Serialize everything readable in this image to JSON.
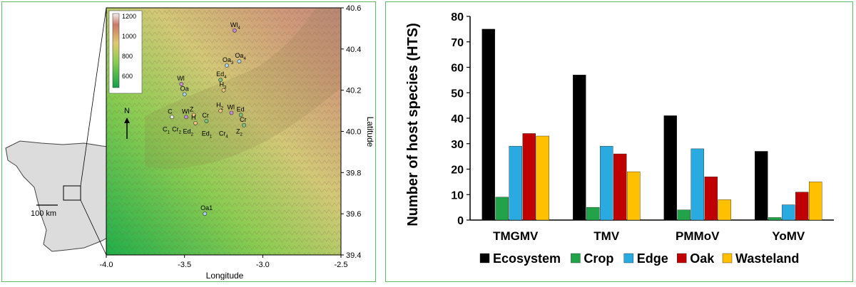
{
  "map": {
    "colorbar": {
      "ticks": [
        "1200",
        "1000",
        "800",
        "600"
      ]
    },
    "lat_ticks": [
      "40.6",
      "40.4",
      "40.2",
      "40.0",
      "39.8",
      "39.6",
      "39.4"
    ],
    "lon_ticks": [
      "-4.0",
      "-3.5",
      "-3.0",
      "-2.5"
    ],
    "lat_label": "Latitude",
    "lon_label": "Longitude",
    "north": "N",
    "scale_label": "100 km",
    "sites": [
      {
        "base": "Wl",
        "sub": "4",
        "color": "#c58ad6",
        "lon": -3.18,
        "lat": 40.49
      },
      {
        "base": "Oa",
        "sub": "3",
        "color": "#a9d3e8",
        "lon": -3.23,
        "lat": 40.32
      },
      {
        "base": "Oa",
        "sub": "4",
        "color": "#a9d3e8",
        "lon": -3.15,
        "lat": 40.34
      },
      {
        "base": "Ed",
        "sub": "4",
        "color": "#7dc37f",
        "lon": -3.27,
        "lat": 40.25
      },
      {
        "base": "H",
        "sub": "3",
        "color": "#f1c27d",
        "lon": -3.25,
        "lat": 40.2
      },
      {
        "base": "Wl",
        "sub": "",
        "color": "#c58ad6",
        "lon": -3.52,
        "lat": 40.23
      },
      {
        "base": "Oa",
        "sub": "",
        "color": "#a9d3e8",
        "lon": -3.5,
        "lat": 40.18
      },
      {
        "base": "C",
        "sub": "",
        "color": "#e8e8e8",
        "lon": -3.58,
        "lat": 40.07
      },
      {
        "base": "Wl",
        "sub": "",
        "color": "#c58ad6",
        "lon": -3.49,
        "lat": 40.07
      },
      {
        "base": "Z",
        "sub": "",
        "color": "#f1c27d",
        "lon": -3.44,
        "lat": 40.08
      },
      {
        "base": "H",
        "sub": "",
        "color": "#f1c27d",
        "lon": -3.43,
        "lat": 40.04
      },
      {
        "base": "Cr",
        "sub": "",
        "color": "#7dc37f",
        "lon": -3.36,
        "lat": 40.05
      },
      {
        "base": "H",
        "sub": "2",
        "color": "#f1c27d",
        "lon": -3.27,
        "lat": 40.1
      },
      {
        "base": "Wl",
        "sub": "",
        "color": "#c58ad6",
        "lon": -3.2,
        "lat": 40.09
      },
      {
        "base": "Ed",
        "sub": "",
        "color": "#7dc37f",
        "lon": -3.14,
        "lat": 40.08
      },
      {
        "base": "Cr",
        "sub": "",
        "color": "#7dc37f",
        "lon": -3.12,
        "lat": 40.03
      },
      {
        "base": "Oa1",
        "sub": "",
        "color": "#a9d3e8",
        "lon": -3.37,
        "lat": 39.6
      }
    ],
    "extra_labels": [
      {
        "base": "C",
        "sub": "1",
        "lon": -3.64,
        "lat": 40.0
      },
      {
        "base": "Cr",
        "sub": "2",
        "lon": -3.58,
        "lat": 40.0
      },
      {
        "base": "Ed",
        "sub": "2",
        "lon": -3.51,
        "lat": 39.99
      },
      {
        "base": "Ed",
        "sub": "1",
        "lon": -3.39,
        "lat": 39.98
      },
      {
        "base": "Cr",
        "sub": "4",
        "lon": -3.28,
        "lat": 39.98
      },
      {
        "base": "Z",
        "sub": "2",
        "lon": -3.17,
        "lat": 39.99
      }
    ]
  },
  "chart_data": {
    "type": "bar",
    "categories": [
      "TMGMV",
      "TMV",
      "PMMoV",
      "YoMV"
    ],
    "series": [
      {
        "name": "Ecosystem",
        "color": "#000000",
        "values": [
          75,
          57,
          41,
          27
        ]
      },
      {
        "name": "Crop",
        "color": "#22a34a",
        "values": [
          9,
          5,
          4,
          1
        ]
      },
      {
        "name": "Edge",
        "color": "#29abe2",
        "values": [
          29,
          29,
          28,
          6
        ]
      },
      {
        "name": "Oak",
        "color": "#c00000",
        "values": [
          34,
          26,
          17,
          11
        ]
      },
      {
        "name": "Wasteland",
        "color": "#ffc000",
        "values": [
          33,
          19,
          8,
          15
        ]
      }
    ],
    "ylabel": "Number of host species (HTS)",
    "ylim": [
      0,
      80
    ],
    "yticks": [
      0,
      10,
      20,
      30,
      40,
      50,
      60,
      70,
      80
    ],
    "legend_position": "bottom"
  }
}
